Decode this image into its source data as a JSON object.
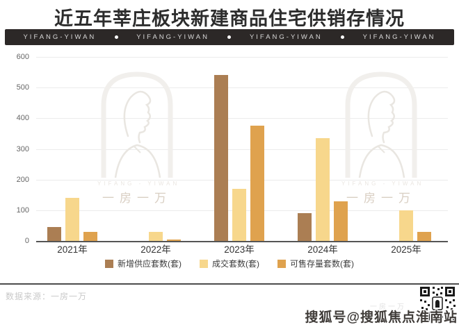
{
  "title": "近五年莘庄板块新建商品住宅供销存情况",
  "banner": {
    "items": [
      "YIFANG-YIWAN",
      "YIFANG-YIWAN",
      "YIFANG-YIWAN",
      "YIFANG-YIWAN"
    ],
    "separator": "dot"
  },
  "chart_data": {
    "type": "bar",
    "title": "近五年莘庄板块新建商品住宅供销存情况",
    "categories": [
      "2021年",
      "2022年",
      "2023年",
      "2024年",
      "2025年"
    ],
    "series": [
      {
        "name": "新增供应套数(套)",
        "color": "#ab7e53",
        "values": [
          45,
          0,
          540,
          90,
          0
        ]
      },
      {
        "name": "成交套数(套)",
        "color": "#f7d78c",
        "values": [
          140,
          30,
          170,
          335,
          100
        ]
      },
      {
        "name": "可售存量套数(套)",
        "color": "#dfa24e",
        "values": [
          30,
          5,
          375,
          130,
          30
        ]
      }
    ],
    "ylim": [
      0,
      600
    ],
    "yticks": [
      600,
      500,
      400,
      300,
      200,
      100,
      0
    ],
    "grid": true,
    "legend_position": "bottom"
  },
  "watermark": {
    "text_en": "YIFANG - YIWAN",
    "text_cn": "一房一万"
  },
  "footer": {
    "source": "数据来源：一房一万",
    "faint_note": "一房一万",
    "sohu_watermark": "搜狐号@搜狐焦点淮南站",
    "qr_icon": "qr-code"
  },
  "colors": {
    "banner_bg": "#2c2827",
    "title_text": "#2d2d2d",
    "grid_line": "#ebebeb",
    "axis_line": "#555555",
    "tick_text": "#666666",
    "legend_text": "#3c3c3c",
    "divider": "#4c4c4c",
    "source_text": "#c9c9c9"
  }
}
